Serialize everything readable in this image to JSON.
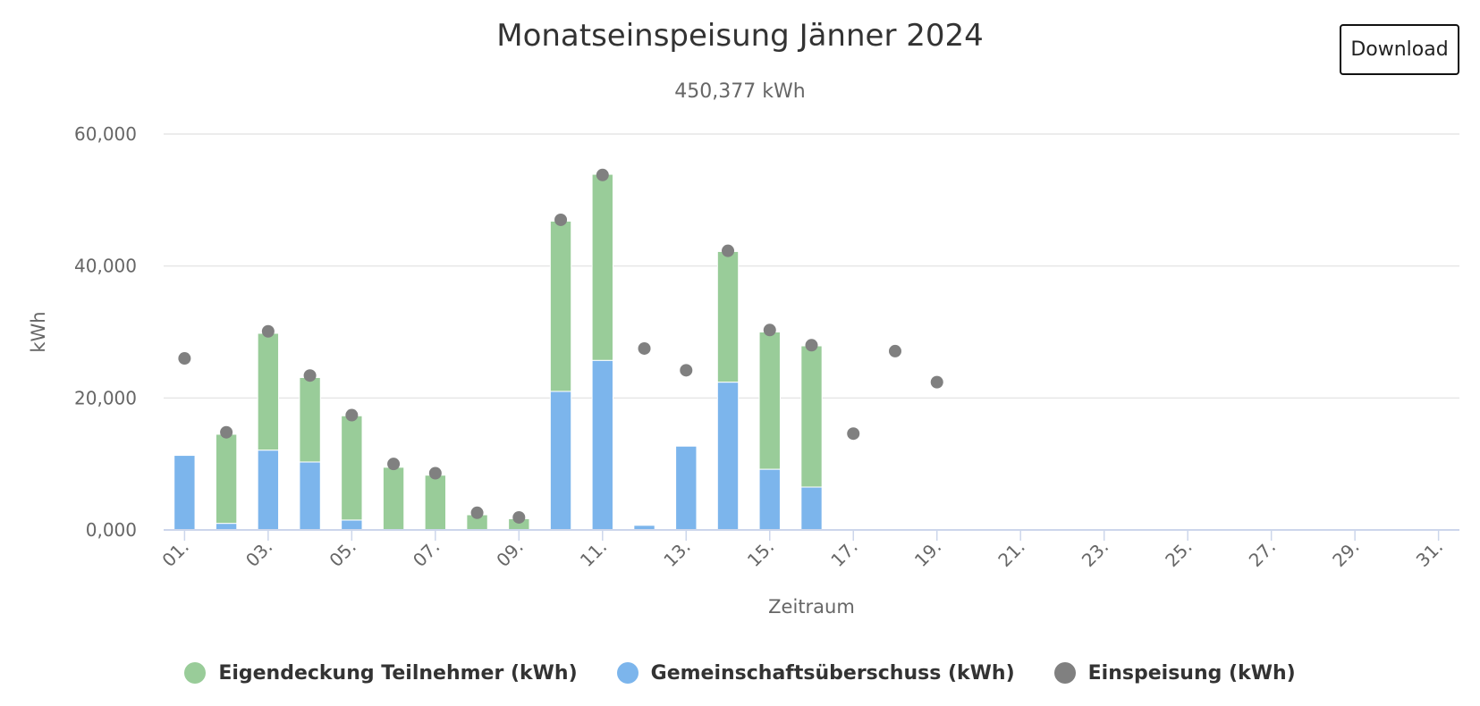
{
  "header": {
    "title": "Monatseinspeisung Jänner 2024",
    "subtitle": "450,377 kWh",
    "download_label": "Download"
  },
  "legend": [
    {
      "label": "Eigendeckung Teilnehmer (kWh)",
      "color": "#99cc99"
    },
    {
      "label": "Gemeinschaftsüberschuss (kWh)",
      "color": "#7cb5ec"
    },
    {
      "label": "Einspeisung (kWh)",
      "color": "#808080"
    }
  ],
  "chart_data": {
    "type": "bar",
    "stacked": true,
    "title": "Monatseinspeisung Jänner 2024",
    "subtitle": "450,377 kWh",
    "xlabel": "Zeitraum",
    "ylabel": "kWh",
    "ylim": [
      0,
      60000
    ],
    "yticks": [
      0,
      20000,
      40000,
      60000
    ],
    "ytick_labels": [
      "0,000",
      "20,000",
      "40,000",
      "60,000"
    ],
    "xtick_labels": [
      "01.",
      "03.",
      "05.",
      "07.",
      "09.",
      "11.",
      "13.",
      "15.",
      "17.",
      "19.",
      "21.",
      "23.",
      "25.",
      "27.",
      "29.",
      "31."
    ],
    "grid": true,
    "legend_position": "bottom",
    "categories": [
      "01.",
      "02.",
      "03.",
      "04.",
      "05.",
      "06.",
      "07.",
      "08.",
      "09.",
      "10.",
      "11.",
      "12.",
      "13.",
      "14.",
      "15.",
      "16.",
      "17.",
      "18.",
      "19.",
      "20.",
      "21.",
      "22.",
      "23.",
      "24.",
      "25.",
      "26.",
      "27.",
      "28.",
      "29.",
      "30.",
      "31."
    ],
    "series": [
      {
        "name": "Gemeinschaftsüberschuss (kWh)",
        "kind": "bar",
        "color": "#7cb5ec",
        "values": [
          11300,
          1000,
          12100,
          10300,
          1500,
          0,
          0,
          0,
          0,
          21000,
          25700,
          700,
          12700,
          22400,
          9200,
          6500,
          0,
          0,
          0,
          0,
          0,
          0,
          0,
          0,
          0,
          0,
          0,
          0,
          0,
          0,
          0
        ]
      },
      {
        "name": "Eigendeckung Teilnehmer (kWh)",
        "kind": "bar",
        "color": "#99cc99",
        "values": [
          0,
          13500,
          17700,
          12800,
          15800,
          9500,
          8300,
          2300,
          1700,
          25800,
          28200,
          0,
          0,
          19800,
          20800,
          21400,
          0,
          0,
          0,
          0,
          0,
          0,
          0,
          0,
          0,
          0,
          0,
          0,
          0,
          0,
          0
        ]
      },
      {
        "name": "Einspeisung (kWh)",
        "kind": "scatter",
        "color": "#808080",
        "values": [
          26000,
          14800,
          30100,
          23400,
          17400,
          10000,
          8600,
          2600,
          1900,
          47000,
          53800,
          27500,
          24200,
          42300,
          30300,
          28000,
          14600,
          27100,
          22400,
          null,
          null,
          null,
          null,
          null,
          null,
          null,
          null,
          null,
          null,
          null,
          null
        ]
      }
    ]
  }
}
